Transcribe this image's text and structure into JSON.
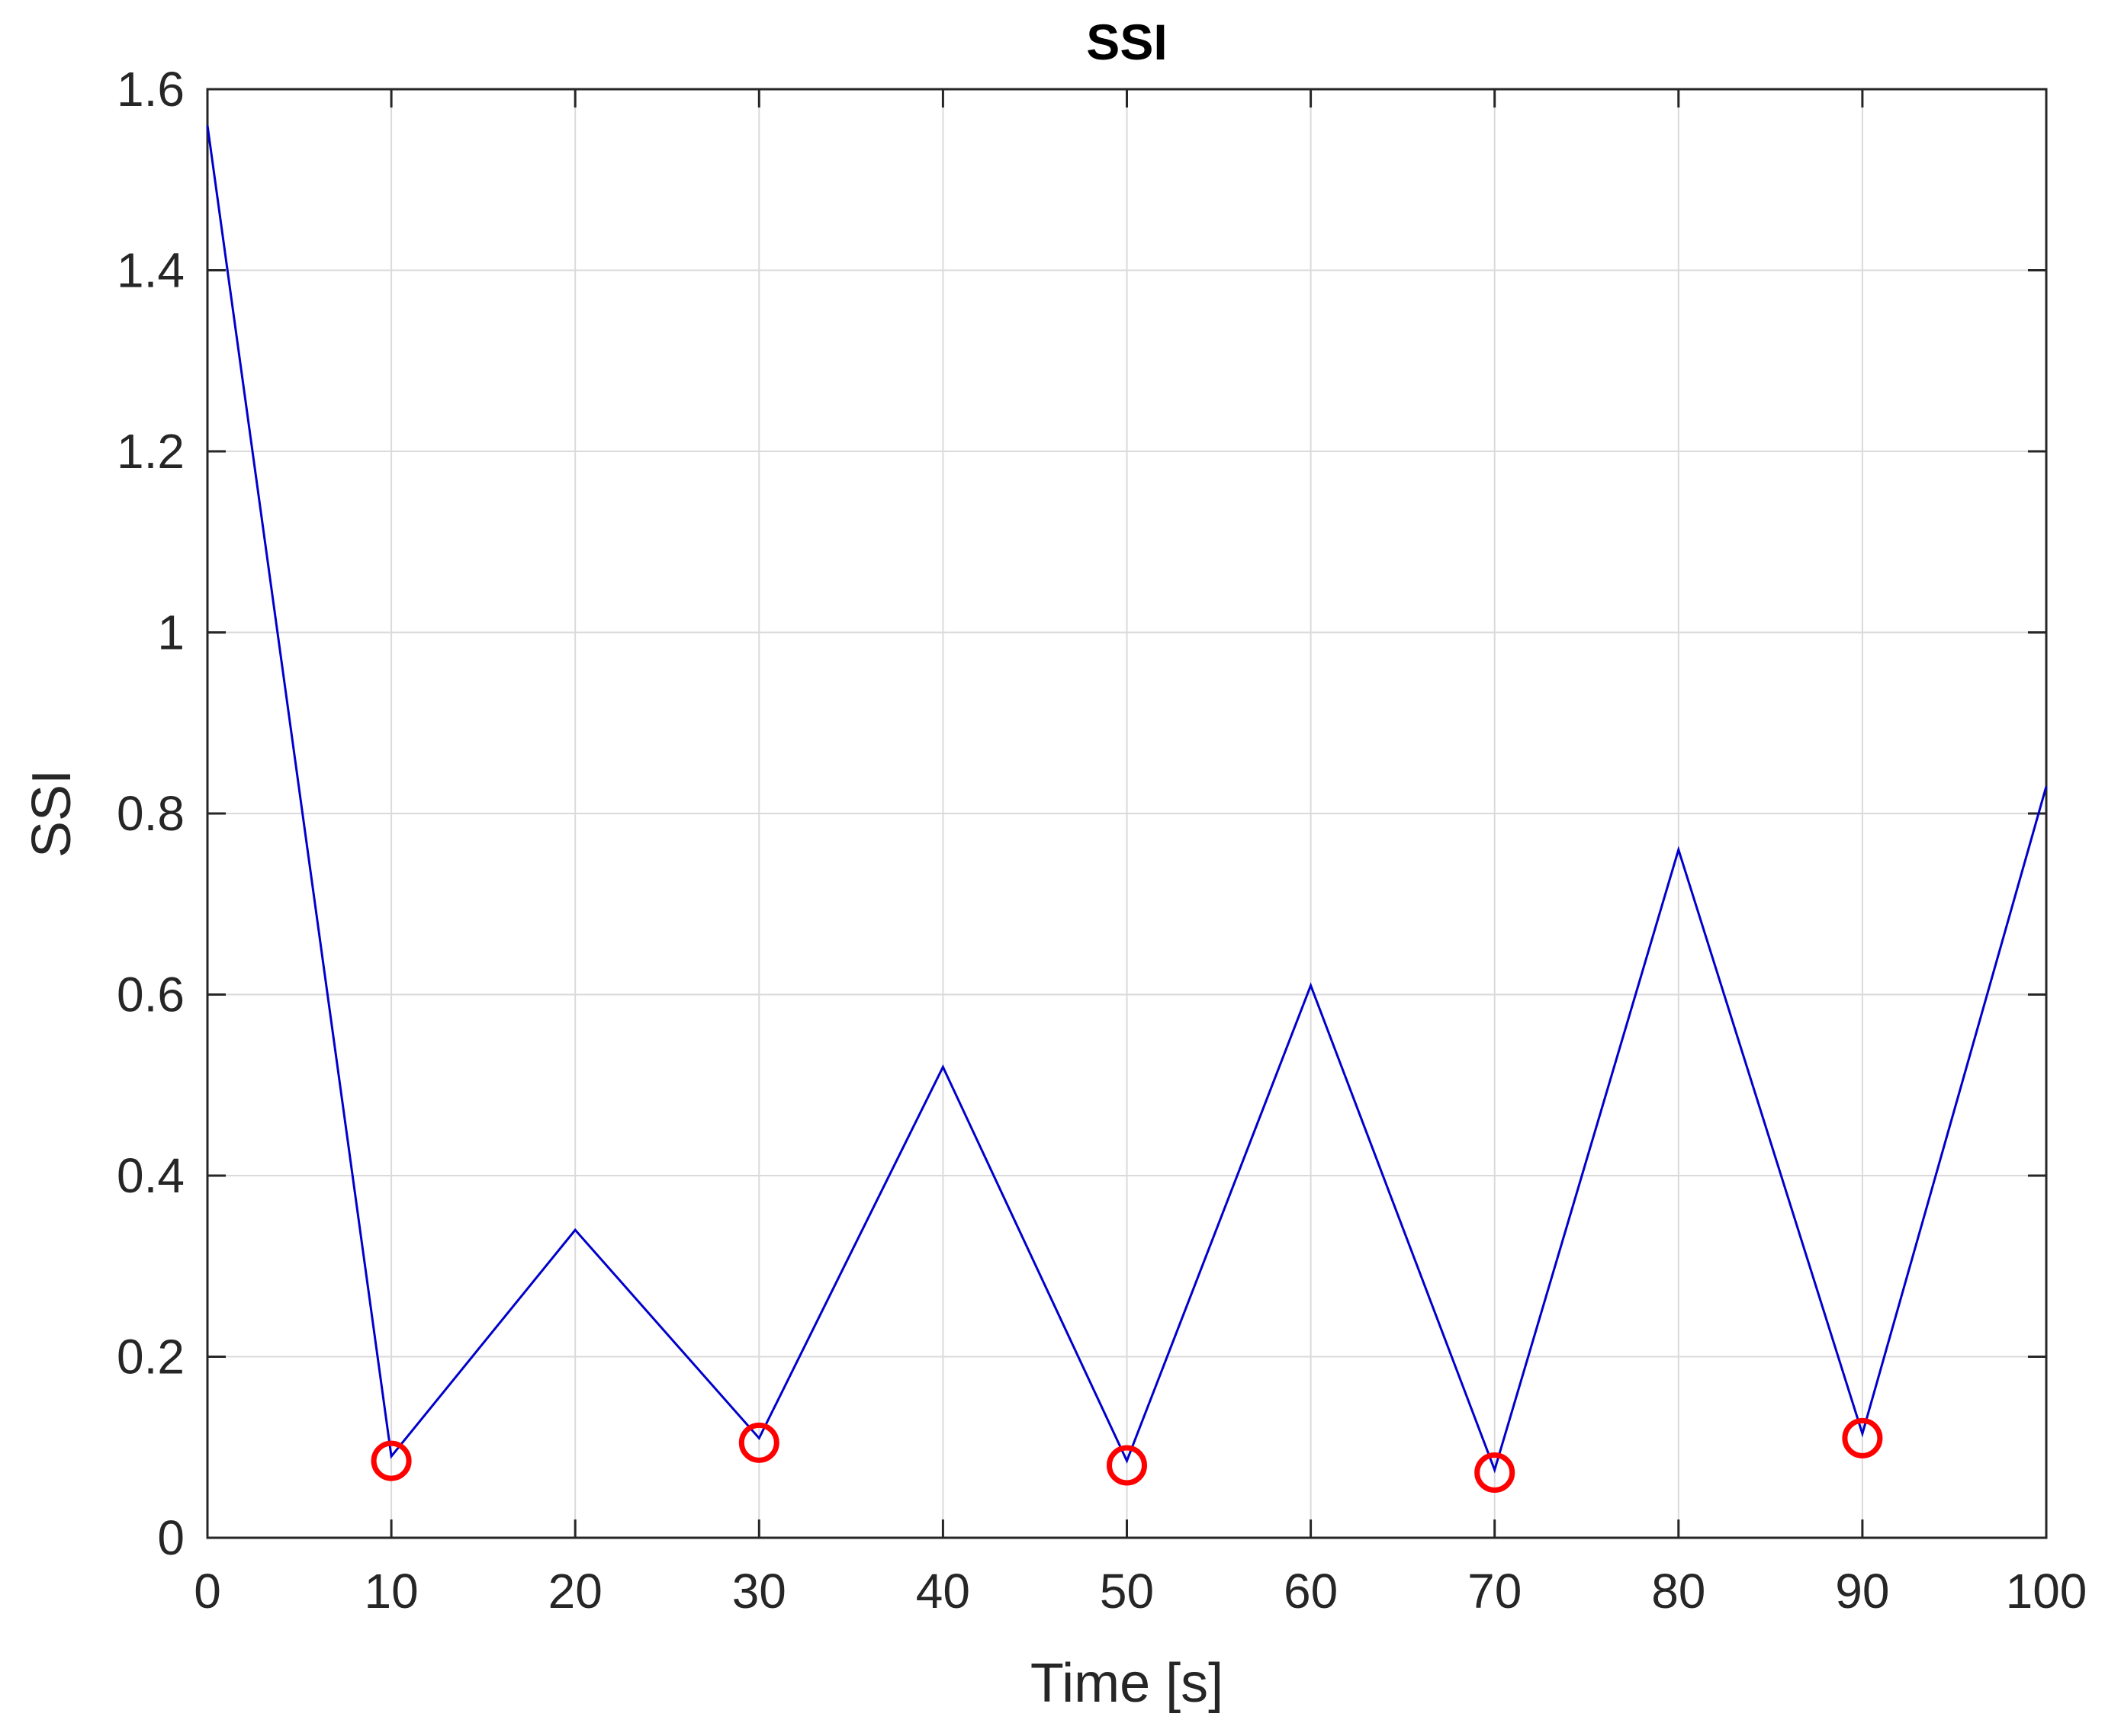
{
  "chart_data": {
    "type": "line",
    "title": "SSI",
    "xlabel": "Time [s]",
    "ylabel": "SSI",
    "xlim": [
      0,
      100
    ],
    "ylim": [
      0,
      1.6
    ],
    "x_ticks": [
      0,
      10,
      20,
      30,
      40,
      50,
      60,
      70,
      80,
      90,
      100
    ],
    "x_tick_labels": [
      "0",
      "10",
      "20",
      "30",
      "40",
      "50",
      "60",
      "70",
      "80",
      "90",
      "100"
    ],
    "y_ticks": [
      0,
      0.2,
      0.4,
      0.6,
      0.8,
      1.0,
      1.2,
      1.4,
      1.6
    ],
    "y_tick_labels": [
      "0",
      "0.2",
      "0.4",
      "0.6",
      "0.8",
      "1",
      "1.2",
      "1.4",
      "1.6"
    ],
    "grid": true,
    "series": [
      {
        "type": "line",
        "color": "#0000cc",
        "x": [
          0,
          10,
          20,
          30,
          40,
          50,
          60,
          70,
          80,
          90,
          100
        ],
        "y": [
          1.56,
          0.09,
          0.34,
          0.11,
          0.52,
          0.085,
          0.61,
          0.075,
          0.76,
          0.115,
          0.83
        ]
      },
      {
        "type": "scatter",
        "marker": "circle",
        "color": "#ff0000",
        "x": [
          10,
          30,
          50,
          70,
          90
        ],
        "y": [
          0.085,
          0.105,
          0.08,
          0.072,
          0.11
        ]
      }
    ]
  }
}
